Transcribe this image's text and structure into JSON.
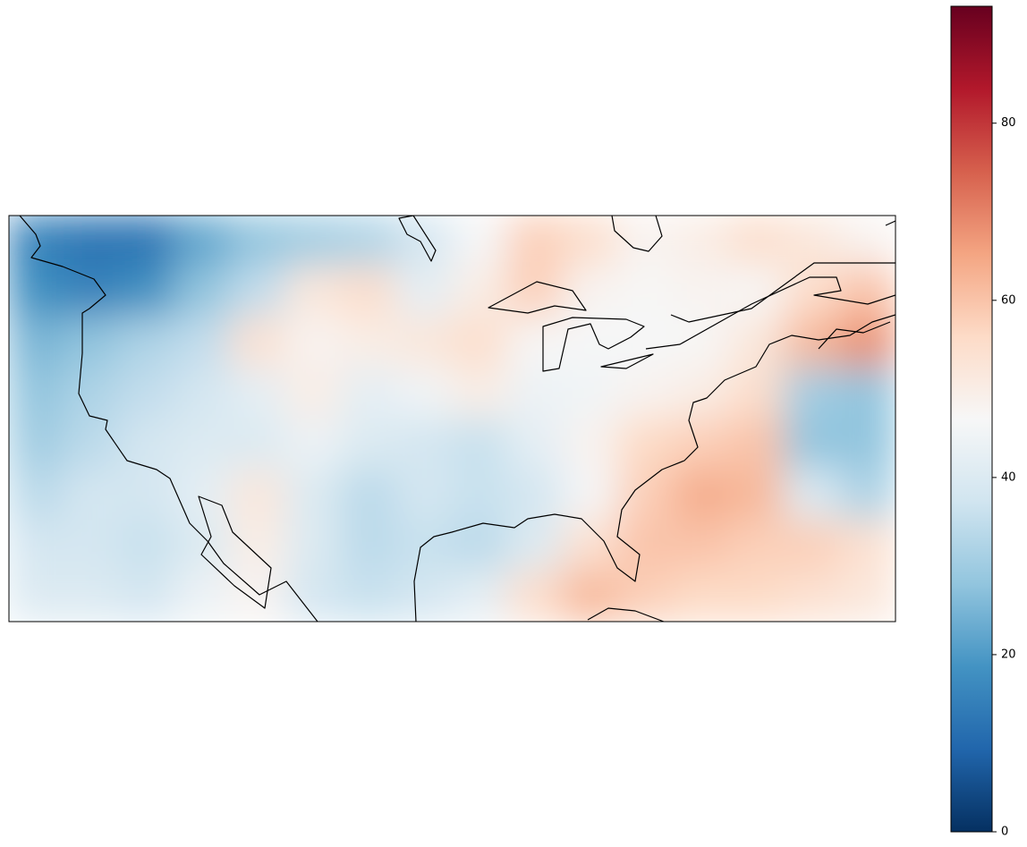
{
  "map": {
    "colormap": "RdBu_r",
    "colorbar": {
      "lim": [
        0,
        93.2
      ],
      "ticks": [
        0,
        20,
        40,
        60,
        80
      ]
    },
    "grid": [
      [
        15,
        12,
        12,
        22,
        28,
        30,
        32,
        38,
        46,
        58,
        55,
        48,
        50,
        55,
        52,
        48
      ],
      [
        18,
        15,
        18,
        28,
        35,
        52,
        55,
        42,
        50,
        58,
        48,
        47,
        48,
        47,
        55,
        60
      ],
      [
        25,
        28,
        32,
        35,
        54,
        48,
        50,
        52,
        55,
        47,
        46,
        46,
        47,
        52,
        62,
        68
      ],
      [
        28,
        32,
        35,
        38,
        42,
        50,
        42,
        45,
        50,
        44,
        45,
        48,
        50,
        55,
        30,
        28
      ],
      [
        30,
        34,
        38,
        40,
        40,
        44,
        40,
        38,
        36,
        42,
        48,
        56,
        58,
        60,
        28,
        28
      ],
      [
        34,
        38,
        38,
        42,
        52,
        40,
        34,
        38,
        36,
        38,
        46,
        58,
        64,
        62,
        40,
        32
      ],
      [
        38,
        38,
        36,
        40,
        50,
        40,
        34,
        36,
        34,
        40,
        54,
        60,
        60,
        58,
        58,
        54
      ],
      [
        40,
        40,
        38,
        44,
        48,
        38,
        36,
        38,
        42,
        55,
        62,
        58,
        56,
        56,
        54,
        52
      ]
    ]
  }
}
